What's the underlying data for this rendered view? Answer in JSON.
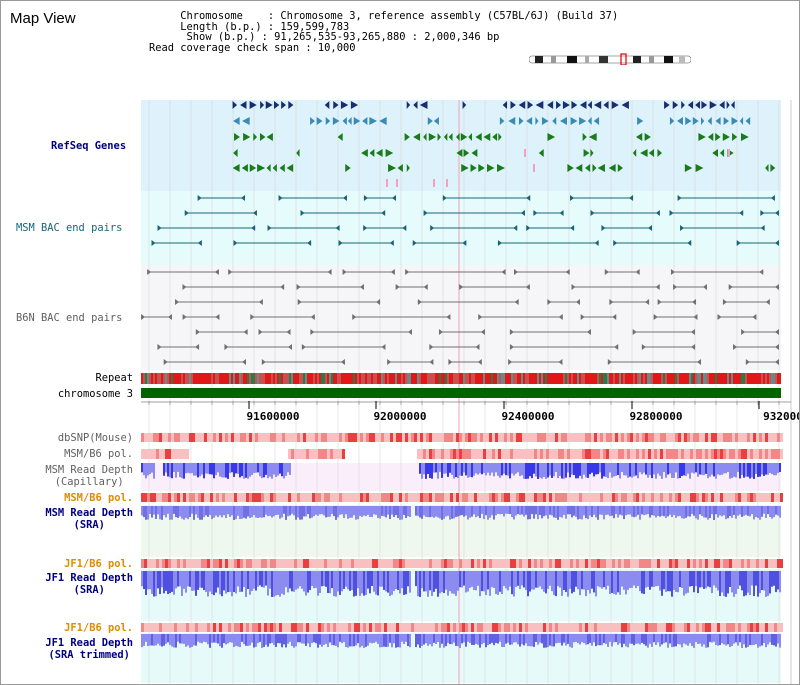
{
  "title": "Map View",
  "info": {
    "chromosome_key": "Chromosome",
    "chromosome_val": "Chromosome 3, reference assembly (C57BL/6J) (Build 37)",
    "length_key": "Length (b.p.)",
    "length_val": "159,599,783",
    "show_key": "Show (b.p.)",
    "show_val": "91,265,535-93,265,880 : 2,000,346 bp",
    "span_key": "Read coverage check span",
    "span_val": "10,000"
  },
  "tracks": {
    "refseq": "RefSeq Genes",
    "msm_bac": "MSM BAC end pairs",
    "b6n_bac": "B6N BAC end pairs",
    "repeat": "Repeat",
    "chromosome": "chromosome 3",
    "dbsnp": "dbSNP(Mouse)",
    "msm_pol_cap": "MSM/B6 pol.",
    "msm_depth_cap_1": "MSM Read Depth",
    "msm_depth_cap_2": "(Capillary)",
    "msm_pol_sra": "MSM/B6 pol.",
    "msm_depth_sra_1": "MSM Read Depth",
    "msm_depth_sra_2": "(SRA)",
    "jf1_pol": "JF1/B6 pol.",
    "jf1_depth_1": "JF1 Read Depth",
    "jf1_depth_2": "(SRA)",
    "jf1_pol_trim": "JF1/B6 pol.",
    "jf1_trim_1": "JF1 Read Depth",
    "jf1_trim_2": "(SRA trimmed)"
  },
  "axis": {
    "ticks": [
      "91600000",
      "92000000",
      "92400000",
      "92800000",
      "932000"
    ]
  },
  "colors": {
    "refseq_bg": "#ddf2fb",
    "msm_bg": "#e6fbfb",
    "b6n_bg": "#f6f6f8",
    "chromosome_bar": "#006400",
    "gene_navy": "#1a2e6e",
    "gene_steel": "#3a8ab4",
    "gene_green": "#1c7a1c",
    "gene_pink": "#f4a0c0",
    "bac_teal": "#1a6478",
    "bac_gray": "#707070",
    "depth_blue": "#3838e8",
    "depth_light": "#8c8cf0",
    "pol_red": "#e84040",
    "pol_pink": "#f8c0c0"
  }
}
